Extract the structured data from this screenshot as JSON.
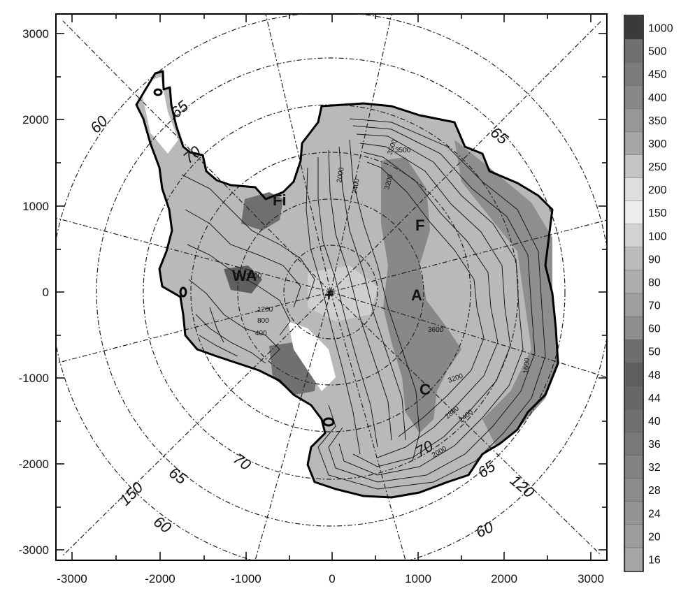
{
  "map": {
    "x_ticks": [
      "-3000",
      "-2000",
      "-1000",
      "0",
      "1000",
      "2000",
      "3000"
    ],
    "y_ticks": [
      "3000",
      "2000",
      "1000",
      "0",
      "-1000",
      "-2000",
      "-3000"
    ],
    "latitude_labels": [
      {
        "text": "60",
        "name": "lat-60-nw"
      },
      {
        "text": "65",
        "name": "lat-65-nw"
      },
      {
        "text": "70",
        "name": "lat-70-nw"
      },
      {
        "text": "65",
        "name": "lat-65-ne"
      },
      {
        "text": "70",
        "name": "lat-70-s"
      },
      {
        "text": "65",
        "name": "lat-65-sw"
      },
      {
        "text": "60",
        "name": "lat-60-sw"
      },
      {
        "text": "70",
        "name": "lat-70-se"
      },
      {
        "text": "65",
        "name": "lat-65-se"
      },
      {
        "text": "60",
        "name": "lat-60-se"
      }
    ],
    "longitude_labels": [
      {
        "text": "150",
        "name": "lon-150"
      },
      {
        "text": "120",
        "name": "lon-120"
      }
    ],
    "site_labels": [
      {
        "text": "Fi",
        "name": "site-fi"
      },
      {
        "text": "F",
        "name": "site-f"
      },
      {
        "text": "WA",
        "name": "site-wa"
      },
      {
        "text": "A",
        "name": "site-a"
      },
      {
        "text": "C",
        "name": "site-c"
      },
      {
        "text": "+",
        "name": "south-pole-marker"
      }
    ],
    "contour_labels": [
      "3500",
      "3500",
      "2000",
      "2400",
      "3200",
      "1500",
      "1200",
      "800",
      "400",
      "3600",
      "3200",
      "2800",
      "2400",
      "2000",
      "1600"
    ]
  },
  "colorbar": {
    "labels": [
      "1000",
      "500",
      "450",
      "400",
      "350",
      "300",
      "250",
      "200",
      "150",
      "100",
      "90",
      "80",
      "70",
      "60",
      "50",
      "48",
      "44",
      "40",
      "36",
      "32",
      "28",
      "24",
      "20",
      "16"
    ],
    "colors": [
      "#3a3a3a",
      "#707070",
      "#7c7c7c",
      "#888888",
      "#979797",
      "#a5a5a5",
      "#c4c4c4",
      "#dedede",
      "#eeeeee",
      "#d2d2d2",
      "#bbbbbb",
      "#adadad",
      "#9f9f9f",
      "#8f8f8f",
      "#6e6e6e",
      "#5e5e5e",
      "#676767",
      "#707070",
      "#787878",
      "#828282",
      "#8b8b8b",
      "#949494",
      "#9d9d9d",
      "#a6a6a6"
    ]
  }
}
